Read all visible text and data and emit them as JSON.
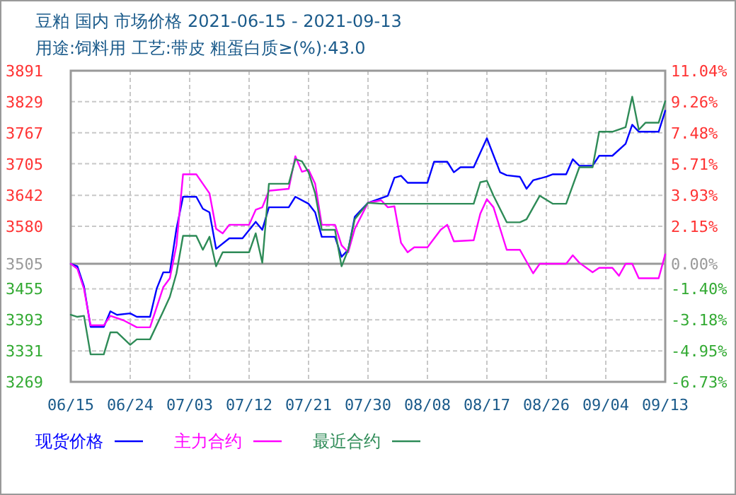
{
  "chart_data": {
    "type": "line",
    "title": "豆粕 国内 市场价格 2021-06-15 - 2021-09-13",
    "subtitle": "用途:饲料用 工艺:带皮 粗蛋白质≥(%):43.0",
    "xlim": [
      "--06-15",
      "--09-13"
    ],
    "xticks": [
      {
        "value": "--06-15",
        "label": "06/15"
      },
      {
        "value": "--06-24",
        "label": "06/24"
      },
      {
        "value": "--07-03",
        "label": "07/03"
      },
      {
        "value": "--07-12",
        "label": "07/12"
      },
      {
        "value": "--07-21",
        "label": "07/21"
      },
      {
        "value": "--07-30",
        "label": "07/30"
      },
      {
        "value": "--08-08",
        "label": "08/08"
      },
      {
        "value": "--08-17",
        "label": "08/17"
      },
      {
        "value": "--08-26",
        "label": "08/26"
      },
      {
        "value": "--09-04",
        "label": "09/04"
      },
      {
        "value": "--09-13",
        "label": "09/13"
      }
    ],
    "ylim": [
      3269,
      3891
    ],
    "yticks": [
      3891,
      3829,
      3767,
      3705,
      3642,
      3580,
      3505,
      3455,
      3393,
      3331,
      3269
    ],
    "y2lim": [
      -6.73,
      11.04
    ],
    "y2ticks": [
      {
        "value": 11.04,
        "label": "11.04%"
      },
      {
        "value": 9.26,
        "label": "9.26%"
      },
      {
        "value": 7.48,
        "label": "7.48%"
      },
      {
        "value": 5.71,
        "label": "5.71%"
      },
      {
        "value": 3.93,
        "label": "3.93%"
      },
      {
        "value": 2.15,
        "label": "2.15%"
      },
      {
        "value": 0,
        "label": "0.00%"
      },
      {
        "value": -1.4,
        "label": "-1.40%"
      },
      {
        "value": -3.18,
        "label": "-3.18%"
      },
      {
        "value": -4.95,
        "label": "-4.95%"
      },
      {
        "value": -6.73,
        "label": "-6.73%"
      }
    ],
    "ref_lines": [
      {
        "axis": "y",
        "value": 3505,
        "label": null,
        "color": "#999999"
      }
    ],
    "grid": true,
    "legend": "bottom",
    "marker": "none",
    "line_style": "solid",
    "series": [
      {
        "name": "现货价格",
        "color": "#0000ff",
        "x": [
          "--06-15",
          "--06-16",
          "--06-17",
          "--06-18",
          "--06-20",
          "--06-21",
          "--06-22",
          "--06-24",
          "--06-25",
          "--06-27",
          "--06-28",
          "--06-29",
          "--06-30",
          "--07-01",
          "--07-02",
          "--07-04",
          "--07-05",
          "--07-06",
          "--07-07",
          "--07-09",
          "--07-11",
          "--07-13",
          "--07-14",
          "--07-15",
          "--07-18",
          "--07-19",
          "--07-21",
          "--07-22",
          "--07-23",
          "--07-25",
          "--07-26",
          "--07-27",
          "--07-28",
          "--07-30",
          "--08-02",
          "--08-03",
          "--08-04",
          "--08-05",
          "--08-08",
          "--08-09",
          "--08-11",
          "--08-12",
          "--08-13",
          "--08-15",
          "--08-17",
          "--08-19",
          "--08-20",
          "--08-22",
          "--08-23",
          "--08-24",
          "--08-26",
          "--08-27",
          "--08-29",
          "--08-30",
          "--08-31",
          "--09-02",
          "--09-03",
          "--09-05",
          "--09-07",
          "--09-08",
          "--09-09",
          "--09-12",
          "--09-13"
        ],
        "values": [
          3505,
          3500,
          3460,
          3379,
          3379,
          3410,
          3403,
          3406,
          3399,
          3399,
          3455,
          3488,
          3488,
          3575,
          3639,
          3639,
          3615,
          3608,
          3535,
          3556,
          3556,
          3589,
          3573,
          3618,
          3618,
          3639,
          3625,
          3608,
          3559,
          3559,
          3519,
          3533,
          3599,
          3627,
          3641,
          3677,
          3681,
          3667,
          3667,
          3709,
          3709,
          3688,
          3698,
          3698,
          3756,
          3688,
          3682,
          3679,
          3655,
          3672,
          3679,
          3684,
          3684,
          3714,
          3701,
          3701,
          3721,
          3721,
          3745,
          3783,
          3769,
          3769,
          3811
        ]
      },
      {
        "name": "主力合约",
        "color": "#ff00ff",
        "x": [
          "--06-15",
          "--06-16",
          "--06-17",
          "--06-18",
          "--06-20",
          "--06-21",
          "--06-23",
          "--06-25",
          "--06-27",
          "--06-29",
          "--06-30",
          "--07-01",
          "--07-02",
          "--07-04",
          "--07-05",
          "--07-06",
          "--07-07",
          "--07-08",
          "--07-09",
          "--07-12",
          "--07-13",
          "--07-14",
          "--07-15",
          "--07-18",
          "--07-19",
          "--07-20",
          "--07-21",
          "--07-22",
          "--07-23",
          "--07-25",
          "--07-26",
          "--07-27",
          "--07-28",
          "--07-30",
          "--08-01",
          "--08-02",
          "--08-03",
          "--08-04",
          "--08-05",
          "--08-06",
          "--08-08",
          "--08-10",
          "--08-11",
          "--08-12",
          "--08-15",
          "--08-16",
          "--08-17",
          "--08-18",
          "--08-20",
          "--08-22",
          "--08-24",
          "--08-25",
          "--08-27",
          "--08-29",
          "--08-30",
          "--08-31",
          "--09-02",
          "--09-03",
          "--09-05",
          "--09-06",
          "--09-07",
          "--09-08",
          "--09-09",
          "--09-12",
          "--09-13"
        ],
        "values": [
          3505,
          3495,
          3455,
          3382,
          3382,
          3401,
          3392,
          3378,
          3378,
          3458,
          3476,
          3542,
          3684,
          3684,
          3665,
          3646,
          3575,
          3566,
          3583,
          3583,
          3613,
          3618,
          3651,
          3655,
          3720,
          3689,
          3693,
          3665,
          3583,
          3583,
          3542,
          3528,
          3575,
          3627,
          3632,
          3618,
          3620,
          3547,
          3528,
          3538,
          3538,
          3573,
          3583,
          3550,
          3552,
          3605,
          3634,
          3618,
          3533,
          3533,
          3486,
          3505,
          3505,
          3505,
          3522,
          3507,
          3488,
          3497,
          3497,
          3481,
          3505,
          3505,
          3476,
          3476,
          3524
        ]
      },
      {
        "name": "最近合约",
        "color": "#2e8b57",
        "x": [
          "--06-15",
          "--06-16",
          "--06-17",
          "--06-18",
          "--06-20",
          "--06-21",
          "--06-22",
          "--06-24",
          "--06-25",
          "--06-27",
          "--06-29",
          "--06-30",
          "--07-01",
          "--07-02",
          "--07-04",
          "--07-05",
          "--07-06",
          "--07-07",
          "--07-08",
          "--07-12",
          "--07-13",
          "--07-14",
          "--07-15",
          "--07-18",
          "--07-19",
          "--07-20",
          "--07-21",
          "--07-22",
          "--07-23",
          "--07-25",
          "--07-26",
          "--07-27",
          "--07-28",
          "--07-30",
          "--08-01",
          "--08-15",
          "--08-16",
          "--08-17",
          "--08-18",
          "--08-20",
          "--08-22",
          "--08-23",
          "--08-25",
          "--08-27",
          "--08-29",
          "--08-31",
          "--09-02",
          "--09-03",
          "--09-05",
          "--09-07",
          "--09-08",
          "--09-09",
          "--09-10",
          "--09-12",
          "--09-13"
        ],
        "values": [
          3403,
          3399,
          3401,
          3324,
          3324,
          3368,
          3368,
          3343,
          3354,
          3354,
          3410,
          3439,
          3486,
          3561,
          3561,
          3533,
          3559,
          3500,
          3528,
          3528,
          3566,
          3507,
          3665,
          3665,
          3714,
          3710,
          3688,
          3646,
          3573,
          3573,
          3500,
          3533,
          3594,
          3627,
          3625,
          3625,
          3668,
          3671,
          3641,
          3588,
          3588,
          3594,
          3641,
          3625,
          3625,
          3698,
          3698,
          3769,
          3769,
          3778,
          3839,
          3773,
          3787,
          3787,
          3830
        ]
      }
    ]
  }
}
